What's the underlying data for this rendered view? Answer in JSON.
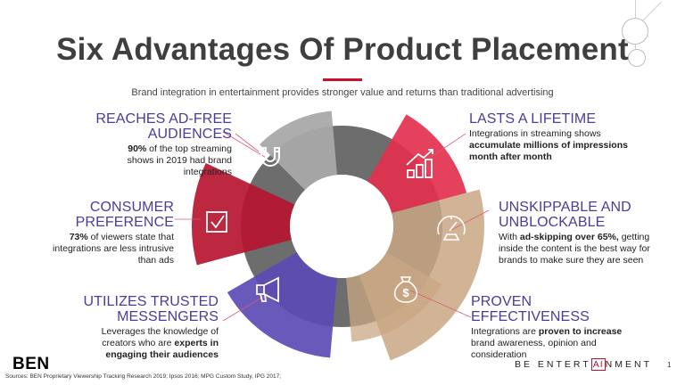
{
  "title": "Six Advantages Of Product Placement",
  "subtitle": "Brand integration in entertainment provides stronger value and returns than traditional advertising",
  "colors": {
    "title_rule": "#c8102e",
    "heading": "#4a3d99",
    "gray": "#a9a9a9",
    "dark_gray": "#6d6d6d",
    "crimson": "#b5162f",
    "pink_red": "#e3314f",
    "tan": "#c9a783",
    "purple": "#5b4bb5"
  },
  "icons": [
    "magnet-icon",
    "growth-chart-icon",
    "checkbox-icon",
    "speedometer-icon",
    "megaphone-icon",
    "money-bag-icon"
  ],
  "advantages": [
    {
      "heading": "REACHES AD-FREE AUDIENCES",
      "pre": "",
      "bold1": "90%",
      "mid": " of the top streaming shows in 2019 had brand integrations",
      "bold2": "",
      "post": ""
    },
    {
      "heading": "CONSUMER PREFERENCE",
      "pre": "",
      "bold1": "73%",
      "mid": " of viewers state that integrations are less intrusive than ads",
      "bold2": "",
      "post": ""
    },
    {
      "heading": "UTILIZES TRUSTED MESSENGERS",
      "pre": "Leverages the knowledge of creators who are ",
      "bold1": "experts in engaging their audiences",
      "mid": "",
      "bold2": "",
      "post": ""
    },
    {
      "heading": "LASTS A LIFETIME",
      "pre": "Integrations in streaming shows ",
      "bold1": "accumulate millions of impressions month after month",
      "mid": "",
      "bold2": "",
      "post": ""
    },
    {
      "heading": "UNSKIPPABLE AND UNBLOCKABLE",
      "pre": "With ",
      "bold1": "ad-skipping over 65%,",
      "mid": " getting inside the content is the best way for brands to make sure they are seen",
      "bold2": "",
      "post": ""
    },
    {
      "heading": "PROVEN EFFECTIVENESS",
      "pre": "Integrations are ",
      "bold1": "proven to increase",
      "mid": " brand awareness, opinion and consideration",
      "bold2": "",
      "post": ""
    }
  ],
  "footer": {
    "sources": "Sources: BEN Proprietary Viewership Tracking Research 2019; Ipsos 2016; MPG Custom Study, IPG 2017;",
    "logo": "BEN",
    "brand_pre": "BE ENTERT",
    "brand_ai": "AI",
    "brand_post": "NMENT",
    "page_number": "1"
  }
}
